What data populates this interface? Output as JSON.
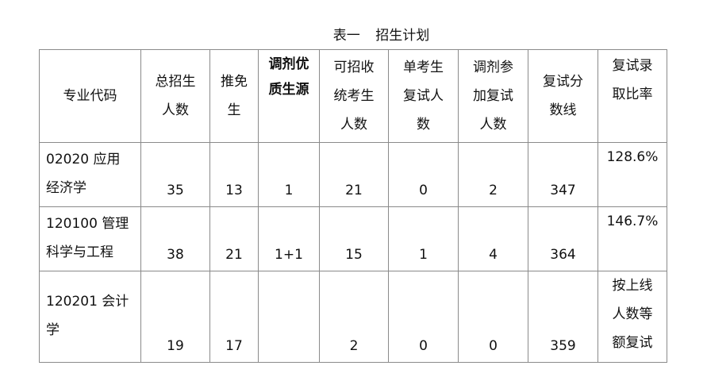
{
  "title": "表一 招生计划",
  "table": {
    "headers": [
      "专业代码",
      "总招生\n人数",
      "推免\n生",
      "调剂优\n质生源",
      "可招收\n统考生\n人数",
      "单考生\n复试人\n数",
      "调剂参\n加复试\n人数",
      "复试分\n数线",
      "复试录\n取比率"
    ],
    "rows": [
      [
        "02020 应用\n经济学",
        "35",
        "13",
        "1",
        "21",
        "0",
        "2",
        "347",
        "128.6%"
      ],
      [
        "120100 管理\n科学与工程",
        "38",
        "21",
        "1+1",
        "15",
        "1",
        "4",
        "364",
        "146.7%"
      ],
      [
        "120201 会计\n学",
        "19",
        "17",
        "",
        "2",
        "0",
        "0",
        "359",
        "按上线\n人数等\n额复试"
      ]
    ]
  }
}
